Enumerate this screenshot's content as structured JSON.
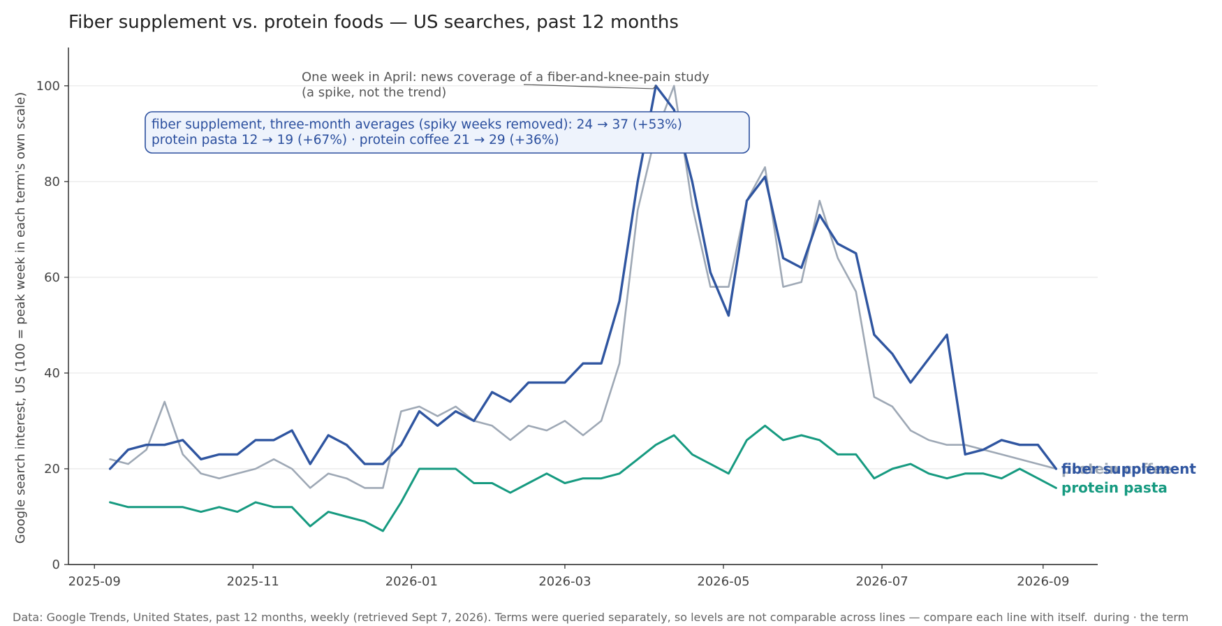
{
  "colors": {
    "fiber": "#2f55a0",
    "protein_coffee": "#9ea8b5",
    "protein_pasta": "#169a80",
    "grid": "#e8e8e8",
    "axis": "#222222",
    "box_fill": "#eef3fc",
    "box_border": "#2b4f9e"
  },
  "chart_data": {
    "type": "line",
    "title": "Fiber supplement vs. protein foods — US searches, past 12 months",
    "ylabel": "Google search interest, US (100 = peak week in each term's own scale)",
    "xlabel": "",
    "ylim": [
      0,
      108
    ],
    "yticks": [
      0,
      20,
      40,
      60,
      80,
      100
    ],
    "xlim": [
      "2025-08-22",
      "2026-09-22"
    ],
    "xticks": [
      {
        "date": "2025-09-01",
        "label": "2025-09"
      },
      {
        "date": "2025-11-01",
        "label": "2025-11"
      },
      {
        "date": "2026-01-01",
        "label": "2026-01"
      },
      {
        "date": "2026-03-01",
        "label": "2026-03"
      },
      {
        "date": "2026-05-01",
        "label": "2026-05"
      },
      {
        "date": "2026-07-01",
        "label": "2026-07"
      },
      {
        "date": "2026-09-01",
        "label": "2026-09"
      }
    ],
    "grid": "horizontal",
    "x": [
      "2025-09-07",
      "2025-09-14",
      "2025-09-21",
      "2025-09-28",
      "2025-10-05",
      "2025-10-12",
      "2025-10-19",
      "2025-10-26",
      "2025-11-02",
      "2025-11-09",
      "2025-11-16",
      "2025-11-23",
      "2025-11-30",
      "2025-12-07",
      "2025-12-14",
      "2025-12-21",
      "2025-12-28",
      "2026-01-04",
      "2026-01-11",
      "2026-01-18",
      "2026-01-25",
      "2026-02-01",
      "2026-02-08",
      "2026-02-15",
      "2026-02-22",
      "2026-03-01",
      "2026-03-08",
      "2026-03-15",
      "2026-03-22",
      "2026-03-29",
      "2026-04-05",
      "2026-04-12",
      "2026-04-19",
      "2026-04-26",
      "2026-05-03",
      "2026-05-10",
      "2026-05-17",
      "2026-05-24",
      "2026-05-31",
      "2026-06-07",
      "2026-06-14",
      "2026-06-21",
      "2026-06-28",
      "2026-07-05",
      "2026-07-12",
      "2026-07-19",
      "2026-07-26",
      "2026-08-02",
      "2026-08-09",
      "2026-08-16",
      "2026-08-23",
      "2026-08-30",
      "2026-09-06"
    ],
    "series": [
      {
        "name": "protein coffee",
        "color_key": "protein_coffee",
        "width": 2.6,
        "values": [
          22,
          21,
          24,
          34,
          23,
          19,
          18,
          19,
          20,
          22,
          20,
          16,
          19,
          18,
          16,
          16,
          32,
          33,
          31,
          33,
          30,
          29,
          26,
          29,
          28,
          30,
          27,
          30,
          42,
          74,
          90,
          100,
          75,
          58,
          58,
          76,
          83,
          58,
          59,
          76,
          64,
          57,
          35,
          33,
          28,
          26,
          25,
          25,
          24,
          23,
          22,
          21,
          20
        ]
      },
      {
        "name": "protein pasta",
        "color_key": "protein_pasta",
        "width": 3,
        "values": [
          13,
          12,
          12,
          12,
          12,
          11,
          12,
          11,
          13,
          12,
          12,
          8,
          11,
          10,
          9,
          7,
          13,
          20,
          20,
          20,
          17,
          17,
          15,
          17,
          19,
          17,
          18,
          18,
          19,
          22,
          25,
          27,
          23,
          21,
          19,
          26,
          29,
          26,
          27,
          26,
          23,
          23,
          18,
          20,
          21,
          19,
          18,
          19,
          19,
          18,
          20,
          18,
          16
        ]
      },
      {
        "name": "fiber supplement",
        "color_key": "fiber",
        "width": 3.4,
        "values": [
          20,
          24,
          25,
          25,
          26,
          22,
          23,
          23,
          26,
          26,
          28,
          21,
          27,
          25,
          21,
          21,
          25,
          32,
          29,
          32,
          30,
          36,
          34,
          38,
          38,
          38,
          42,
          42,
          55,
          80,
          100,
          95,
          80,
          61,
          52,
          76,
          81,
          64,
          62,
          73,
          67,
          65,
          48,
          44,
          38,
          43,
          48,
          23,
          24,
          26,
          25,
          25,
          20
        ]
      }
    ],
    "annotations": {
      "spike_line1": "One week in April: news coverage of a fiber-and-knee-pain study",
      "spike_line2": "(a spike, not the trend)",
      "box_line1": "fiber supplement, three-month averages (spiky weeks removed): 24 → 37  (+53%)",
      "box_line2": "protein pasta 12 → 19 (+67%) · protein coffee 21 → 29 (+36%)"
    },
    "end_labels": [
      {
        "text": "protein coffee",
        "color_key": "protein_coffee"
      },
      {
        "text": "fiber supplement",
        "color_key": "fiber"
      },
      {
        "text": "protein pasta",
        "color_key": "protein_pasta"
      }
    ],
    "source": "Data: Google Trends, United States, past 12 months, weekly (retrieved Sept 7, 2026). Terms were queried separately, so levels are not comparable across lines — compare each line with itself.",
    "source_tail": "during · the term"
  }
}
